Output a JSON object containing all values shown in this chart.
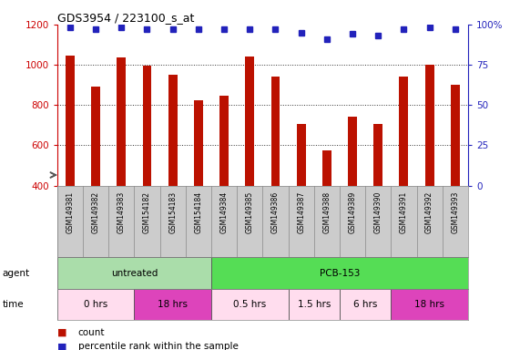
{
  "title": "GDS3954 / 223100_s_at",
  "samples": [
    "GSM149381",
    "GSM149382",
    "GSM149383",
    "GSM154182",
    "GSM154183",
    "GSM154184",
    "GSM149384",
    "GSM149385",
    "GSM149386",
    "GSM149387",
    "GSM149388",
    "GSM149389",
    "GSM149390",
    "GSM149391",
    "GSM149392",
    "GSM149393"
  ],
  "counts": [
    1045,
    890,
    1035,
    995,
    950,
    825,
    845,
    1040,
    940,
    705,
    575,
    740,
    705,
    940,
    1000,
    900
  ],
  "percentile_ranks": [
    98,
    97,
    98,
    97,
    97,
    97,
    97,
    97,
    97,
    95,
    91,
    94,
    93,
    97,
    98,
    97
  ],
  "bar_color": "#bb1100",
  "dot_color": "#2222bb",
  "ylim_left": [
    400,
    1200
  ],
  "ylim_right": [
    0,
    100
  ],
  "yticks_left": [
    400,
    600,
    800,
    1000,
    1200
  ],
  "yticks_right": [
    0,
    25,
    50,
    75,
    100
  ],
  "left_axis_color": "#cc0000",
  "right_axis_color": "#2222bb",
  "agent_row": [
    {
      "label": "untreated",
      "start": 0,
      "end": 6,
      "color": "#aaddaa"
    },
    {
      "label": "PCB-153",
      "start": 6,
      "end": 16,
      "color": "#55dd55"
    }
  ],
  "time_row": [
    {
      "label": "0 hrs",
      "start": 0,
      "end": 3,
      "color": "#ffddee"
    },
    {
      "label": "18 hrs",
      "start": 3,
      "end": 6,
      "color": "#dd44bb"
    },
    {
      "label": "0.5 hrs",
      "start": 6,
      "end": 9,
      "color": "#ffddee"
    },
    {
      "label": "1.5 hrs",
      "start": 9,
      "end": 11,
      "color": "#ffddee"
    },
    {
      "label": "6 hrs",
      "start": 11,
      "end": 13,
      "color": "#ffddee"
    },
    {
      "label": "18 hrs",
      "start": 13,
      "end": 16,
      "color": "#dd44bb"
    }
  ],
  "grid_color": "#333333",
  "background_color": "#ffffff",
  "axis_bar_bg": "#cccccc",
  "bar_width": 0.35
}
